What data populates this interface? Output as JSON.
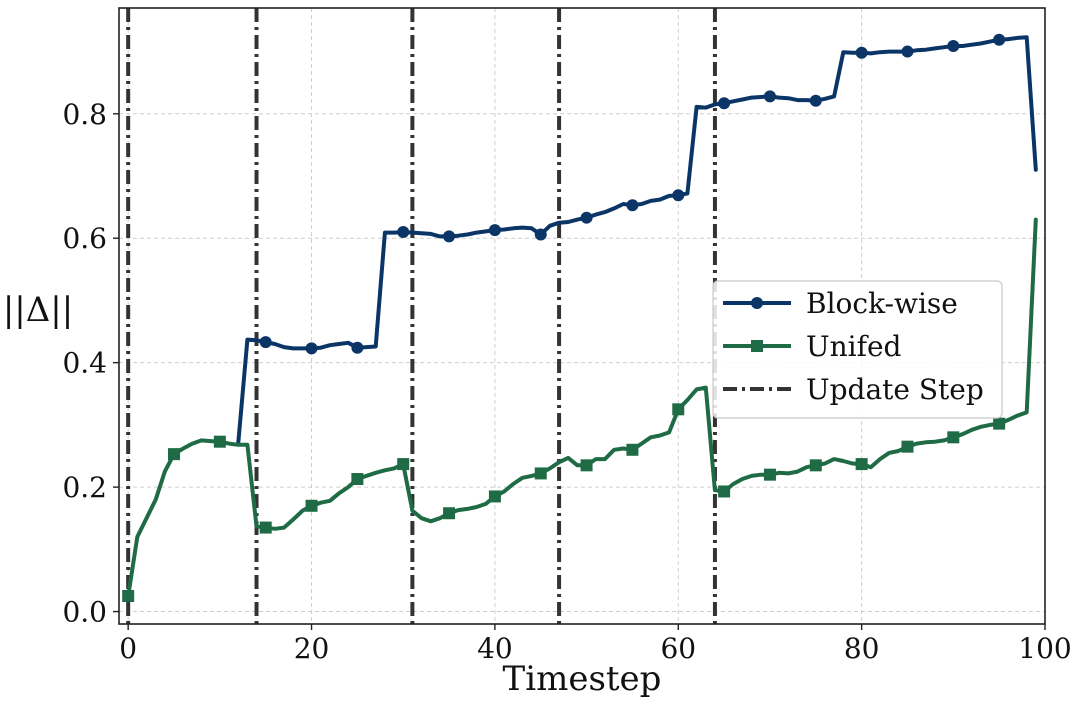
{
  "chart_data": {
    "type": "line",
    "xlabel": "Timestep",
    "ylabel": "||Δ||",
    "xlim": [
      -1,
      100
    ],
    "ylim": [
      -0.02,
      0.97
    ],
    "xticks": [
      0,
      20,
      40,
      60,
      80,
      100
    ],
    "xtick_labels": [
      "0",
      "20",
      "40",
      "60",
      "80",
      "100"
    ],
    "yticks": [
      0.0,
      0.2,
      0.4,
      0.6,
      0.8
    ],
    "ytick_labels": [
      "0.0",
      "0.2",
      "0.4",
      "0.6",
      "0.8"
    ],
    "grid": true,
    "legend_position": "center-right",
    "update_steps": [
      0,
      14,
      31,
      47,
      64
    ],
    "series": [
      {
        "name": "Block-wise",
        "color": "#0b3567",
        "marker": "circle",
        "x": [
          12,
          13,
          14,
          15,
          16,
          17,
          18,
          19,
          20,
          21,
          22,
          23,
          24,
          25,
          26,
          27,
          28,
          29,
          30,
          31,
          32,
          33,
          34,
          35,
          36,
          37,
          38,
          39,
          40,
          41,
          42,
          43,
          44,
          45,
          46,
          47,
          48,
          49,
          50,
          51,
          52,
          53,
          54,
          55,
          56,
          57,
          58,
          59,
          60,
          61,
          62,
          63,
          64,
          65,
          66,
          67,
          68,
          69,
          70,
          71,
          72,
          73,
          74,
          75,
          76,
          77,
          78,
          79,
          80,
          81,
          82,
          83,
          84,
          85,
          86,
          87,
          88,
          89,
          90,
          91,
          92,
          93,
          94,
          95,
          96,
          97,
          98,
          99
        ],
        "y": [
          0.27,
          0.437,
          0.436,
          0.433,
          0.43,
          0.425,
          0.423,
          0.423,
          0.423,
          0.424,
          0.428,
          0.43,
          0.432,
          0.424,
          0.425,
          0.426,
          0.609,
          0.609,
          0.61,
          0.609,
          0.608,
          0.607,
          0.603,
          0.603,
          0.604,
          0.606,
          0.609,
          0.611,
          0.613,
          0.614,
          0.616,
          0.617,
          0.616,
          0.606,
          0.62,
          0.625,
          0.626,
          0.63,
          0.633,
          0.638,
          0.642,
          0.648,
          0.655,
          0.653,
          0.655,
          0.66,
          0.662,
          0.668,
          0.669,
          0.672,
          0.811,
          0.81,
          0.815,
          0.817,
          0.82,
          0.823,
          0.826,
          0.827,
          0.828,
          0.826,
          0.825,
          0.822,
          0.822,
          0.821,
          0.824,
          0.828,
          0.899,
          0.898,
          0.898,
          0.897,
          0.899,
          0.9,
          0.9,
          0.9,
          0.902,
          0.903,
          0.905,
          0.907,
          0.909,
          0.909,
          0.911,
          0.913,
          0.916,
          0.919,
          0.92,
          0.922,
          0.923,
          0.71
        ],
        "marker_x": [
          15,
          20,
          25,
          30,
          35,
          40,
          45,
          50,
          55,
          60,
          65,
          70,
          75,
          80,
          85,
          90,
          95
        ]
      },
      {
        "name": "Unifed",
        "color": "#1f6b45",
        "marker": "square",
        "x": [
          0,
          1,
          2,
          3,
          4,
          5,
          6,
          7,
          8,
          9,
          10,
          11,
          12,
          13,
          14,
          15,
          16,
          17,
          18,
          19,
          20,
          21,
          22,
          23,
          24,
          25,
          26,
          27,
          28,
          29,
          30,
          31,
          32,
          33,
          34,
          35,
          36,
          37,
          38,
          39,
          40,
          41,
          42,
          43,
          44,
          45,
          46,
          47,
          48,
          49,
          50,
          51,
          52,
          53,
          54,
          55,
          56,
          57,
          58,
          59,
          60,
          61,
          62,
          63,
          64,
          65,
          66,
          67,
          68,
          69,
          70,
          71,
          72,
          73,
          74,
          75,
          76,
          77,
          78,
          79,
          80,
          81,
          82,
          83,
          84,
          85,
          86,
          87,
          88,
          89,
          90,
          91,
          92,
          93,
          94,
          95,
          96,
          97,
          98,
          99
        ],
        "y": [
          0.025,
          0.12,
          0.15,
          0.18,
          0.225,
          0.253,
          0.262,
          0.27,
          0.275,
          0.274,
          0.273,
          0.27,
          0.268,
          0.268,
          0.137,
          0.135,
          0.133,
          0.135,
          0.148,
          0.162,
          0.17,
          0.175,
          0.178,
          0.19,
          0.2,
          0.213,
          0.218,
          0.223,
          0.227,
          0.23,
          0.237,
          0.162,
          0.15,
          0.145,
          0.15,
          0.158,
          0.163,
          0.165,
          0.168,
          0.173,
          0.185,
          0.193,
          0.205,
          0.215,
          0.218,
          0.222,
          0.23,
          0.24,
          0.247,
          0.235,
          0.235,
          0.245,
          0.245,
          0.26,
          0.262,
          0.26,
          0.27,
          0.28,
          0.283,
          0.288,
          0.325,
          0.34,
          0.357,
          0.36,
          0.195,
          0.193,
          0.205,
          0.213,
          0.218,
          0.22,
          0.22,
          0.223,
          0.222,
          0.225,
          0.232,
          0.235,
          0.238,
          0.245,
          0.242,
          0.238,
          0.237,
          0.232,
          0.245,
          0.255,
          0.258,
          0.265,
          0.27,
          0.272,
          0.273,
          0.275,
          0.28,
          0.285,
          0.292,
          0.297,
          0.3,
          0.302,
          0.308,
          0.315,
          0.32,
          0.63
        ],
        "marker_x": [
          0,
          5,
          10,
          15,
          20,
          25,
          30,
          35,
          40,
          45,
          50,
          55,
          60,
          65,
          70,
          75,
          80,
          85,
          90,
          95
        ]
      }
    ],
    "update_step_label": "Update Step",
    "update_step_color": "#333333"
  }
}
